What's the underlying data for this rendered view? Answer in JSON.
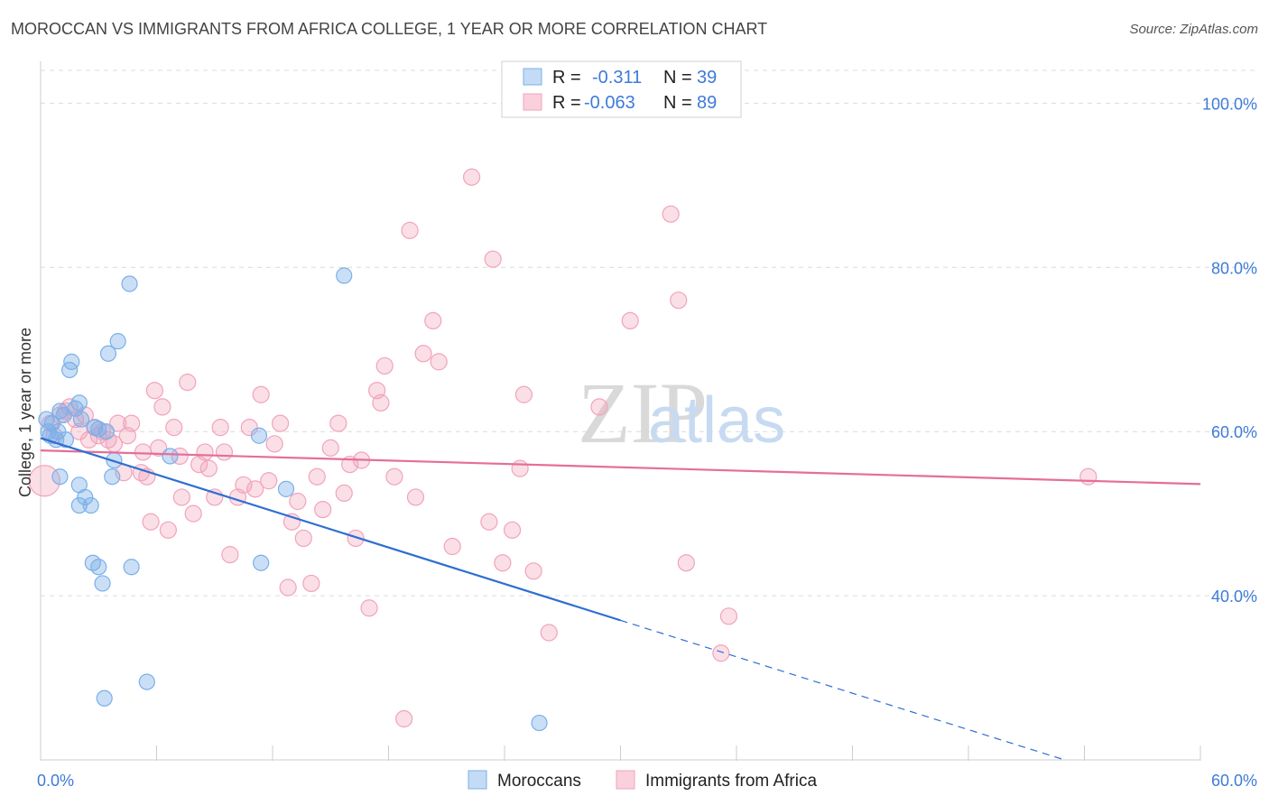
{
  "title": "MOROCCAN VS IMMIGRANTS FROM AFRICA COLLEGE, 1 YEAR OR MORE CORRELATION CHART",
  "source": "Source: ZipAtlas.com",
  "watermark": {
    "zip": "ZIP",
    "atlas": "atlas"
  },
  "colors": {
    "blue": "#7ab0e8",
    "blue_line": "#2e6fd1",
    "pink": "#f2a3bb",
    "pink_line": "#e56e99",
    "tick": "#3d7bd9"
  },
  "chart_data": {
    "type": "scatter",
    "title": "MOROCCAN VS IMMIGRANTS FROM AFRICA COLLEGE, 1 YEAR OR MORE CORRELATION CHART",
    "xlabel": "",
    "ylabel": "College, 1 year or more",
    "xlim": [
      0,
      60
    ],
    "ylim": [
      20,
      104
    ],
    "x_tick_labels": [
      "0.0%",
      "60.0%"
    ],
    "y_ticks": [
      40,
      60,
      80,
      100
    ],
    "y_tick_labels": [
      "40.0%",
      "60.0%",
      "80.0%",
      "100.0%"
    ],
    "grid": true,
    "legend_position": "top-center",
    "stats": [
      {
        "r_label": "R =",
        "r": "-0.311",
        "n_label": "N =",
        "n": "39"
      },
      {
        "r_label": "R =",
        "r": "-0.063",
        "n_label": "N =",
        "n": "89"
      }
    ],
    "series": [
      {
        "name": "Moroccans",
        "color": "#7ab0e8",
        "trend": {
          "x1": 0,
          "y1": 59.2,
          "x2": 30,
          "y2": 37.0,
          "dash_to_x": 60,
          "dash_to_y": 14.8
        },
        "points": [
          [
            0.3,
            61.5
          ],
          [
            0.4,
            60.0
          ],
          [
            0.5,
            59.5
          ],
          [
            0.6,
            61.0
          ],
          [
            0.8,
            59.0
          ],
          [
            1.0,
            62.5
          ],
          [
            1.2,
            62.0
          ],
          [
            1.3,
            59.0
          ],
          [
            1.0,
            54.5
          ],
          [
            1.5,
            67.5
          ],
          [
            1.6,
            68.5
          ],
          [
            2.0,
            63.5
          ],
          [
            2.1,
            61.5
          ],
          [
            2.0,
            53.5
          ],
          [
            2.0,
            51.0
          ],
          [
            2.3,
            52.0
          ],
          [
            2.6,
            51.0
          ],
          [
            2.7,
            44.0
          ],
          [
            2.8,
            60.5
          ],
          [
            3.0,
            43.5
          ],
          [
            3.2,
            41.5
          ],
          [
            3.3,
            27.5
          ],
          [
            3.4,
            60.0
          ],
          [
            3.5,
            69.5
          ],
          [
            3.7,
            54.5
          ],
          [
            3.8,
            56.5
          ],
          [
            4.0,
            71.0
          ],
          [
            4.6,
            78.0
          ],
          [
            4.7,
            43.5
          ],
          [
            5.5,
            29.5
          ],
          [
            6.7,
            57.0
          ],
          [
            11.3,
            59.5
          ],
          [
            11.4,
            44.0
          ],
          [
            12.7,
            53.0
          ],
          [
            15.7,
            79.0
          ],
          [
            25.8,
            24.5
          ],
          [
            0.9,
            60.0
          ],
          [
            1.8,
            62.8
          ],
          [
            3.0,
            60.3
          ]
        ]
      },
      {
        "name": "Immigrants from Africa",
        "color": "#f2a3bb",
        "trend": {
          "x1": 0,
          "y1": 57.7,
          "x2": 60,
          "y2": 53.6
        },
        "points": [
          [
            0.2,
            54.0
          ],
          [
            0.5,
            61.0
          ],
          [
            0.7,
            59.5
          ],
          [
            1.0,
            62.0
          ],
          [
            1.3,
            62.5
          ],
          [
            1.5,
            63.0
          ],
          [
            1.8,
            61.5
          ],
          [
            2.0,
            60.0
          ],
          [
            2.3,
            62.0
          ],
          [
            2.5,
            59.0
          ],
          [
            2.8,
            60.5
          ],
          [
            3.0,
            59.5
          ],
          [
            3.2,
            60.0
          ],
          [
            3.5,
            59.0
          ],
          [
            3.8,
            58.5
          ],
          [
            4.0,
            61.0
          ],
          [
            4.3,
            55.0
          ],
          [
            4.5,
            59.5
          ],
          [
            4.7,
            61.0
          ],
          [
            5.2,
            55.0
          ],
          [
            5.3,
            57.5
          ],
          [
            5.5,
            54.5
          ],
          [
            5.7,
            49.0
          ],
          [
            5.9,
            65.0
          ],
          [
            6.1,
            58.0
          ],
          [
            6.3,
            63.0
          ],
          [
            6.6,
            48.0
          ],
          [
            6.9,
            60.5
          ],
          [
            7.2,
            57.0
          ],
          [
            7.3,
            52.0
          ],
          [
            7.6,
            66.0
          ],
          [
            7.9,
            50.0
          ],
          [
            8.2,
            56.0
          ],
          [
            8.5,
            57.5
          ],
          [
            8.7,
            55.5
          ],
          [
            9.0,
            52.0
          ],
          [
            9.3,
            60.5
          ],
          [
            9.5,
            57.5
          ],
          [
            9.8,
            45.0
          ],
          [
            10.2,
            52.0
          ],
          [
            10.5,
            53.5
          ],
          [
            10.8,
            60.5
          ],
          [
            11.1,
            53.0
          ],
          [
            11.4,
            64.5
          ],
          [
            11.8,
            54.0
          ],
          [
            12.1,
            58.5
          ],
          [
            12.4,
            61.0
          ],
          [
            12.8,
            41.0
          ],
          [
            13.0,
            49.0
          ],
          [
            13.3,
            51.5
          ],
          [
            13.6,
            47.0
          ],
          [
            14.0,
            41.5
          ],
          [
            14.3,
            54.5
          ],
          [
            14.6,
            50.5
          ],
          [
            15.0,
            58.0
          ],
          [
            15.4,
            61.0
          ],
          [
            15.7,
            52.5
          ],
          [
            16.0,
            56.0
          ],
          [
            16.3,
            47.0
          ],
          [
            16.6,
            56.5
          ],
          [
            17.0,
            38.5
          ],
          [
            17.4,
            65.0
          ],
          [
            17.6,
            63.5
          ],
          [
            17.8,
            68.0
          ],
          [
            18.3,
            54.5
          ],
          [
            18.8,
            25.0
          ],
          [
            19.1,
            84.5
          ],
          [
            19.4,
            52.0
          ],
          [
            19.8,
            69.5
          ],
          [
            20.3,
            73.5
          ],
          [
            20.6,
            68.5
          ],
          [
            21.3,
            46.0
          ],
          [
            22.3,
            91.0
          ],
          [
            23.2,
            49.0
          ],
          [
            23.4,
            81.0
          ],
          [
            23.9,
            44.0
          ],
          [
            24.4,
            48.0
          ],
          [
            24.8,
            55.5
          ],
          [
            25.0,
            64.5
          ],
          [
            25.5,
            43.0
          ],
          [
            26.3,
            35.5
          ],
          [
            28.9,
            63.0
          ],
          [
            30.5,
            73.5
          ],
          [
            32.6,
            86.5
          ],
          [
            33.0,
            76.0
          ],
          [
            33.4,
            44.0
          ],
          [
            35.2,
            33.0
          ],
          [
            35.6,
            37.5
          ],
          [
            54.2,
            54.5
          ]
        ]
      }
    ]
  },
  "bottom_legend": [
    "Moroccans",
    "Immigrants from Africa"
  ]
}
